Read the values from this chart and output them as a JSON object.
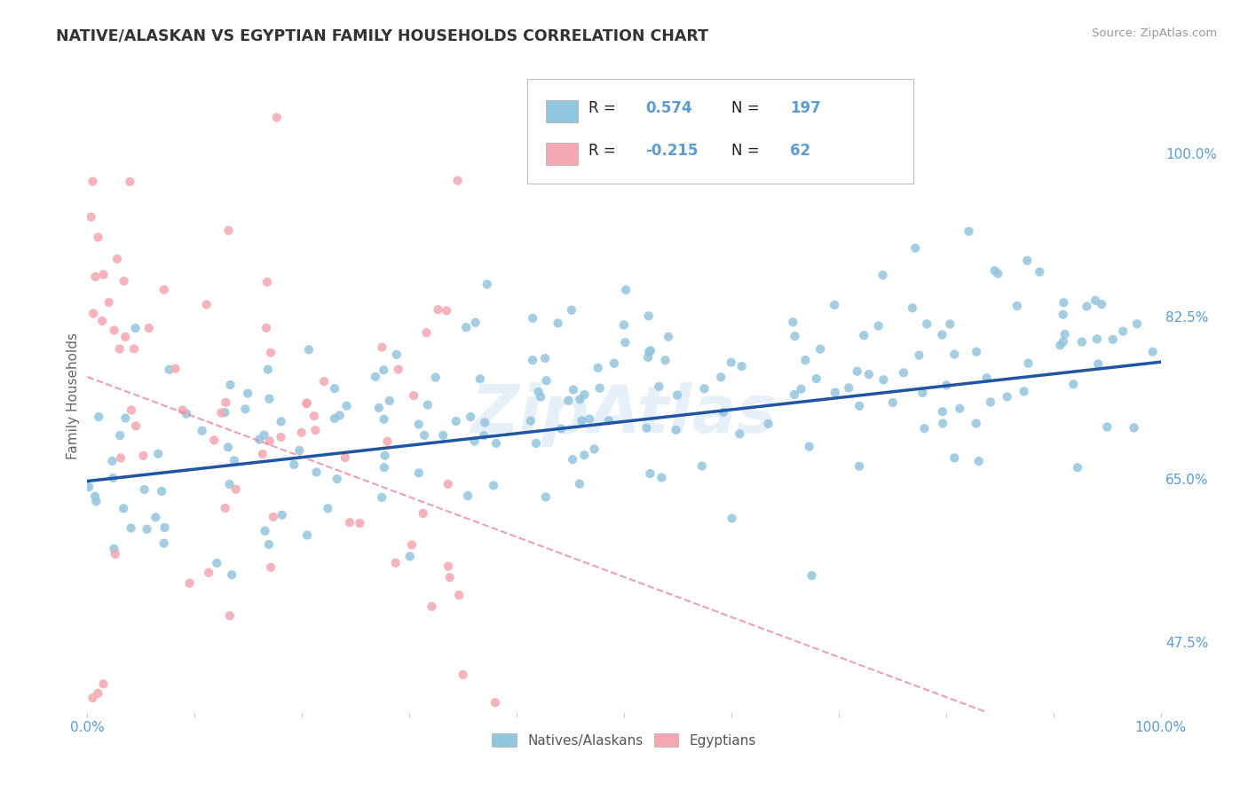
{
  "title": "NATIVE/ALASKAN VS EGYPTIAN FAMILY HOUSEHOLDS CORRELATION CHART",
  "source": "Source: ZipAtlas.com",
  "ylabel": "Family Households",
  "xlim": [
    0.0,
    1.0
  ],
  "ylim": [
    0.4,
    1.08
  ],
  "yticks": [
    0.475,
    0.65,
    0.825,
    1.0
  ],
  "ytick_labels": [
    "47.5%",
    "65.0%",
    "82.5%",
    "100.0%"
  ],
  "blue_R": 0.574,
  "blue_N": 197,
  "pink_R": -0.215,
  "pink_N": 62,
  "blue_color": "#92C5DE",
  "pink_color": "#F4A7B1",
  "blue_line_color": "#2055A4",
  "pink_line_color": "#E87EA1",
  "watermark": "ZipAtlas",
  "background_color": "#FFFFFF",
  "grid_color": "#CCCCCC",
  "title_color": "#333333",
  "tick_label_color": "#5B9BD5"
}
